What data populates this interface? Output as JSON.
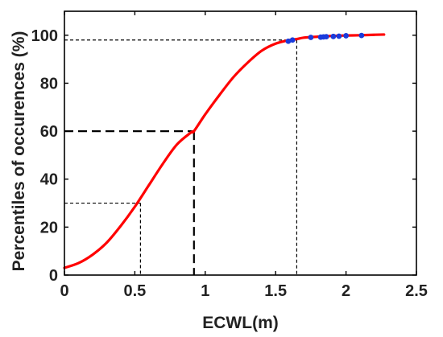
{
  "chart_data": {
    "type": "line",
    "title": "",
    "xlabel": "ECWL(m)",
    "ylabel": "Percentiles of occurences (%)",
    "xlim": [
      0,
      2.5
    ],
    "ylim": [
      0,
      110
    ],
    "x_ticks": [
      0,
      0.5,
      1,
      1.5,
      2,
      2.5
    ],
    "x_tick_labels": [
      "0",
      "0.5",
      "1",
      "1.5",
      "2",
      "2.5"
    ],
    "y_ticks": [
      0,
      20,
      40,
      60,
      80,
      100
    ],
    "y_tick_labels": [
      "0",
      "20",
      "40",
      "60",
      "80",
      "100"
    ],
    "grid": false,
    "series": [
      {
        "kind": "curve",
        "x": [
          0,
          0.1,
          0.2,
          0.3,
          0.4,
          0.5,
          0.6,
          0.7,
          0.8,
          0.9,
          0.92,
          1.0,
          1.1,
          1.2,
          1.3,
          1.4,
          1.5,
          1.6,
          1.65,
          1.7,
          1.8,
          1.9,
          2.0,
          2.1,
          2.2,
          2.27
        ],
        "y": [
          3,
          5,
          8.5,
          13.5,
          20.5,
          28.5,
          37.5,
          46.5,
          54.5,
          59.5,
          60,
          67,
          75,
          82.5,
          88.5,
          93.5,
          96.5,
          98,
          98.4,
          99,
          99.4,
          99.7,
          99.9,
          100,
          100.2,
          100.3
        ],
        "color": "#ff0000"
      },
      {
        "kind": "points",
        "x": [
          1.59,
          1.62,
          1.75,
          1.82,
          1.84,
          1.86,
          1.91,
          1.95,
          2.0,
          2.11
        ],
        "y": [
          97.5,
          98,
          99.1,
          99.2,
          99.3,
          99.4,
          99.5,
          99.6,
          99.8,
          99.9
        ],
        "color": "#1a3bdc"
      }
    ],
    "reference_lines": [
      {
        "x": 0.54,
        "y": 30,
        "dash": "thin"
      },
      {
        "x": 0.92,
        "y": 60,
        "dash": "thick"
      },
      {
        "x": 1.65,
        "y": 98,
        "dash": "thin"
      }
    ]
  }
}
